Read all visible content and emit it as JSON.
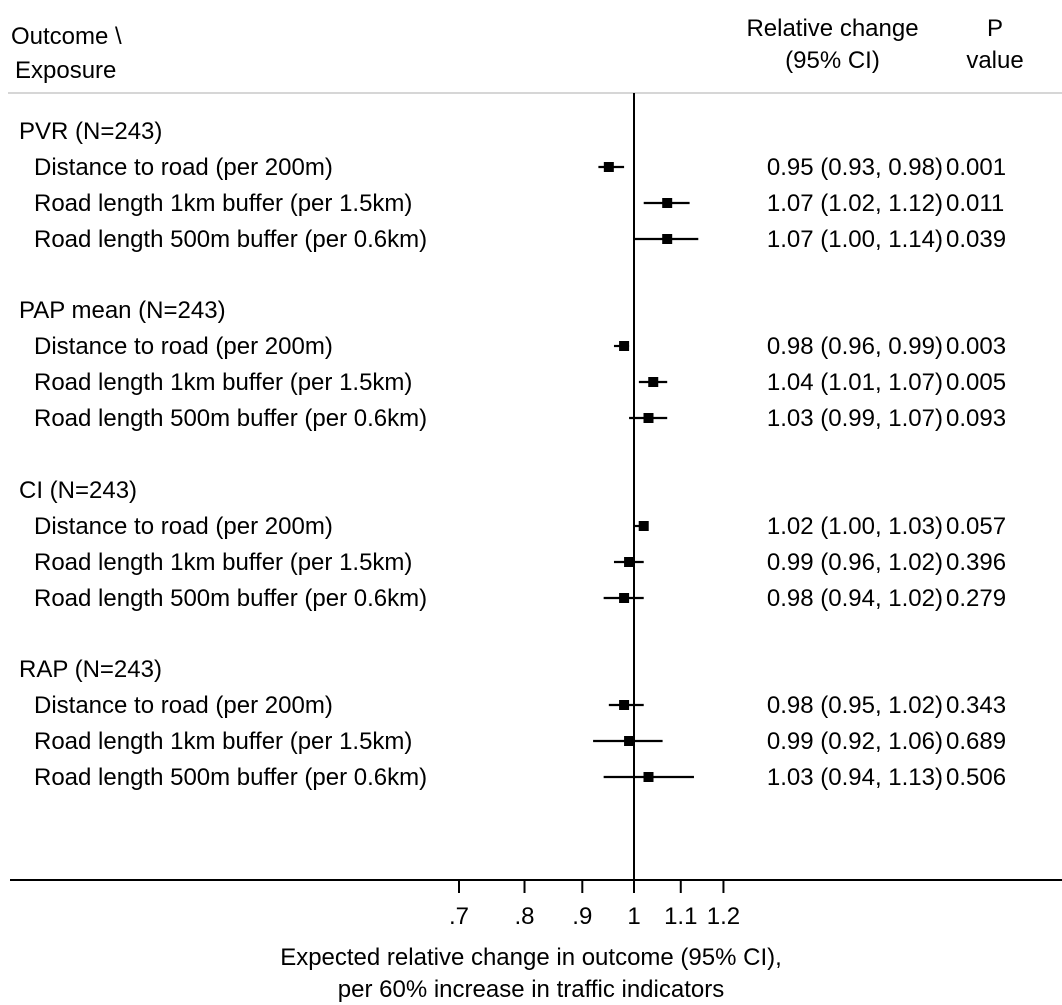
{
  "headers": {
    "outcome_line1": "Outcome \\",
    "outcome_line2": "Exposure",
    "rc_line1": "Relative change",
    "rc_line2": "(95% CI)",
    "p_line1": "P",
    "p_line2": "value"
  },
  "chart_data": {
    "type": "forest",
    "xscale": "log",
    "reference_line": 1,
    "xlim": [
      0.7,
      1.2
    ],
    "xticks": [
      ".7",
      ".8",
      ".9",
      "1",
      "1.1",
      "1.2"
    ],
    "xtick_values": [
      0.7,
      0.8,
      0.9,
      1.0,
      1.1,
      1.2
    ],
    "xlabel_line1": "Expected relative change in outcome (95% CI),",
    "xlabel_line2": "per 60% increase in traffic indicators",
    "groups": [
      {
        "label": "PVR (N=243)",
        "rows": [
          {
            "label": "Distance to road (per 200m)",
            "est": 0.95,
            "lo": 0.93,
            "hi": 0.98,
            "text": "0.95 (0.93, 0.98)",
            "p": "0.001"
          },
          {
            "label": "Road length 1km buffer (per 1.5km)",
            "est": 1.07,
            "lo": 1.02,
            "hi": 1.12,
            "text": "1.07 (1.02, 1.12)",
            "p": "0.011"
          },
          {
            "label": "Road length 500m buffer (per 0.6km)",
            "est": 1.07,
            "lo": 1.0,
            "hi": 1.14,
            "text": "1.07 (1.00, 1.14)",
            "p": "0.039"
          }
        ]
      },
      {
        "label": "PAP mean (N=243)",
        "rows": [
          {
            "label": "Distance to road (per 200m)",
            "est": 0.98,
            "lo": 0.96,
            "hi": 0.99,
            "text": "0.98 (0.96, 0.99)",
            "p": "0.003"
          },
          {
            "label": "Road length 1km buffer (per 1.5km)",
            "est": 1.04,
            "lo": 1.01,
            "hi": 1.07,
            "text": "1.04 (1.01, 1.07)",
            "p": "0.005"
          },
          {
            "label": "Road length 500m buffer (per 0.6km)",
            "est": 1.03,
            "lo": 0.99,
            "hi": 1.07,
            "text": "1.03 (0.99, 1.07)",
            "p": "0.093"
          }
        ]
      },
      {
        "label": "CI (N=243)",
        "rows": [
          {
            "label": "Distance to road (per 200m)",
            "est": 1.02,
            "lo": 1.0,
            "hi": 1.03,
            "text": "1.02 (1.00, 1.03)",
            "p": "0.057"
          },
          {
            "label": "Road length 1km buffer (per 1.5km)",
            "est": 0.99,
            "lo": 0.96,
            "hi": 1.02,
            "text": "0.99 (0.96, 1.02)",
            "p": "0.396"
          },
          {
            "label": "Road length 500m buffer (per 0.6km)",
            "est": 0.98,
            "lo": 0.94,
            "hi": 1.02,
            "text": "0.98 (0.94, 1.02)",
            "p": "0.279"
          }
        ]
      },
      {
        "label": "RAP (N=243)",
        "rows": [
          {
            "label": "Distance to road (per 200m)",
            "est": 0.98,
            "lo": 0.95,
            "hi": 1.02,
            "text": "0.98 (0.95, 1.02)",
            "p": "0.343"
          },
          {
            "label": "Road length 1km buffer (per 1.5km)",
            "est": 0.99,
            "lo": 0.92,
            "hi": 1.06,
            "text": "0.99 (0.92, 1.06)",
            "p": "0.689"
          },
          {
            "label": "Road length 500m buffer (per 0.6km)",
            "est": 1.03,
            "lo": 0.94,
            "hi": 1.13,
            "text": "1.03 (0.94, 1.13)",
            "p": "0.506"
          }
        ]
      }
    ]
  }
}
